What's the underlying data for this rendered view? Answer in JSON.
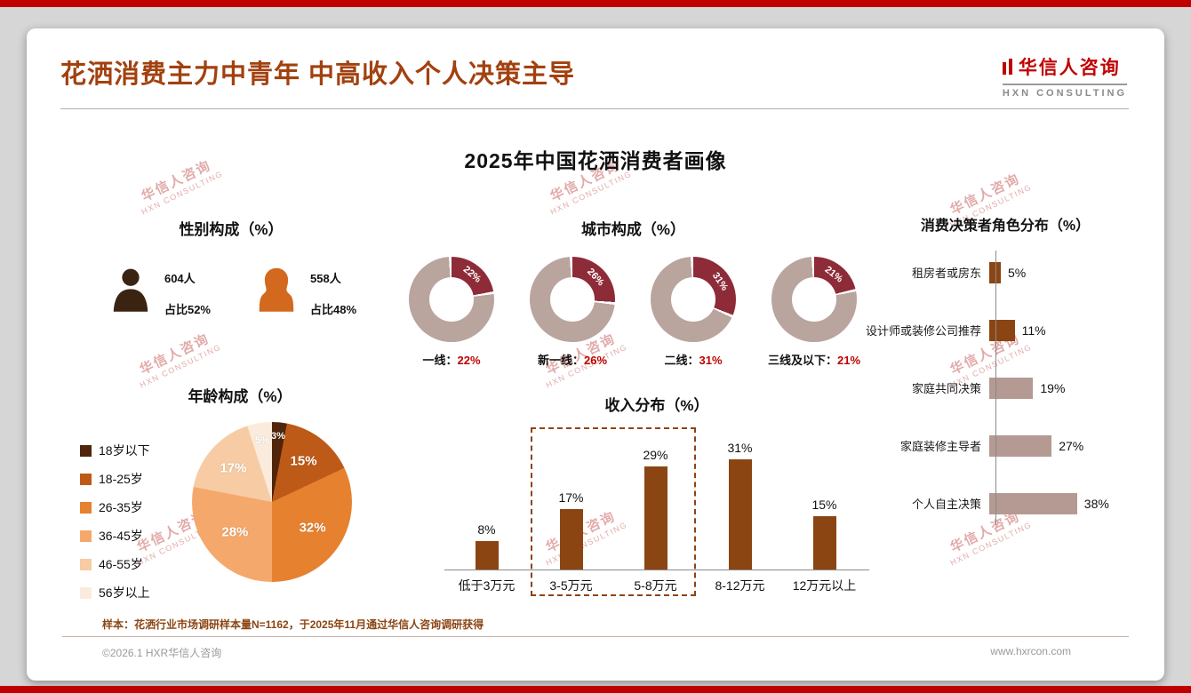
{
  "page": {
    "title": "花洒消费主力中青年 中高收入个人决策主导",
    "logo_name": "华信人咨询",
    "logo_sub": "HXN CONSULTING",
    "subtitle": "2025年中国花洒消费者画像",
    "footnote": "样本：花洒行业市场调研样本量N=1162，于2025年11月通过华信人咨询调研获得",
    "footer_left": "©2026.1 HXR华信人咨询",
    "footer_right": "www.hxrcon.com"
  },
  "watermark": {
    "line1": "华信人咨询",
    "line2": "HXN CONSULTING"
  },
  "colors": {
    "accent_red": "#C00000",
    "title_brown": "#A2410F",
    "donut_segment": "#8E2B38",
    "donut_base": "#B9A49E",
    "bar_brown": "#8B4513",
    "hbar_light": "#B49A92"
  },
  "chart_data": [
    {
      "id": "gender",
      "type": "table",
      "title": "性别构成（%）",
      "rows": [
        {
          "label": "男",
          "count": "604人",
          "share": "占比52%",
          "color": "#3B2312"
        },
        {
          "label": "女",
          "count": "558人",
          "share": "占比48%",
          "color": "#D2691E"
        }
      ]
    },
    {
      "id": "city",
      "type": "pie",
      "variant": "donut",
      "title": "城市构成（%）",
      "segment_color": "#8E2B38",
      "base_color": "#B9A49E",
      "items": [
        {
          "label": "一线",
          "value": 22
        },
        {
          "label": "新一线",
          "value": 26
        },
        {
          "label": "二线",
          "value": 31
        },
        {
          "label": "三线及以下",
          "value": 21
        }
      ]
    },
    {
      "id": "age",
      "type": "pie",
      "title": "年龄构成（%）",
      "categories": [
        "18岁以下",
        "18-25岁",
        "26-35岁",
        "36-45岁",
        "46-55岁",
        "56岁以上"
      ],
      "values": [
        3,
        15,
        32,
        28,
        17,
        5
      ],
      "colors": [
        "#50250B",
        "#BE5A17",
        "#E6812F",
        "#F5A86B",
        "#F7CBA3",
        "#FBEBDC"
      ],
      "legend_position": "left"
    },
    {
      "id": "income",
      "type": "bar",
      "title": "收入分布（%）",
      "categories": [
        "低于3万元",
        "3-5万元",
        "5-8万元",
        "8-12万元",
        "12万元以上"
      ],
      "values": [
        8,
        17,
        29,
        31,
        15
      ],
      "bar_color": "#8B4513",
      "highlight_categories": [
        "3-5万元",
        "5-8万元"
      ]
    },
    {
      "id": "decision",
      "type": "bar",
      "orientation": "horizontal",
      "title": "消费决策者角色分布（%）",
      "categories": [
        "租房者或房东",
        "设计师或装修公司推荐",
        "家庭共同决策",
        "家庭装修主导者",
        "个人自主决策"
      ],
      "values": [
        5,
        11,
        19,
        27,
        38
      ],
      "bar_colors": [
        "#8B4513",
        "#8B4513",
        "#B49A92",
        "#B49A92",
        "#B49A92"
      ]
    }
  ]
}
